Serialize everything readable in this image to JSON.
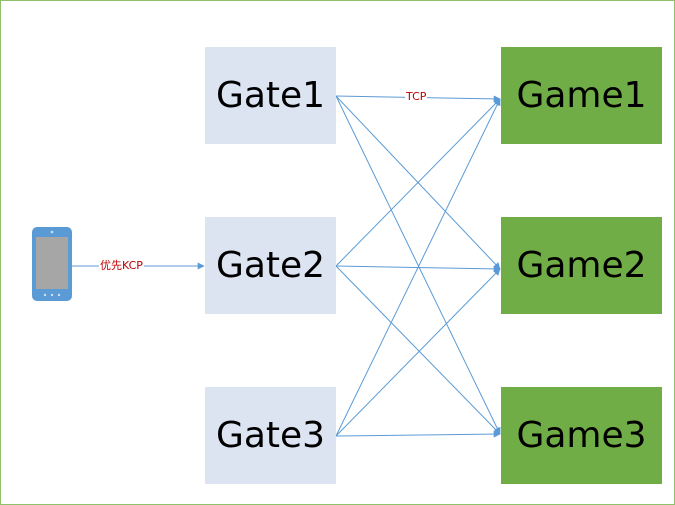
{
  "colors": {
    "border": "#8dc26a",
    "gate_fill": "#dce4f2",
    "game_fill": "#70ad47",
    "edge": "#5b9bd5",
    "label_text": "#c00000",
    "phone_body": "#5b9bd5",
    "phone_screen": "#a6a6a6"
  },
  "client": {
    "icon": "mobile-phone-icon"
  },
  "gates": [
    {
      "label": "Gate1"
    },
    {
      "label": "Gate2"
    },
    {
      "label": "Gate3"
    }
  ],
  "games": [
    {
      "label": "Game1"
    },
    {
      "label": "Game2"
    },
    {
      "label": "Game3"
    }
  ],
  "edges": {
    "client_to_gate_label": "优先KCP",
    "gate_to_game_label": "TCP",
    "gate_to_game": "all-to-all"
  }
}
